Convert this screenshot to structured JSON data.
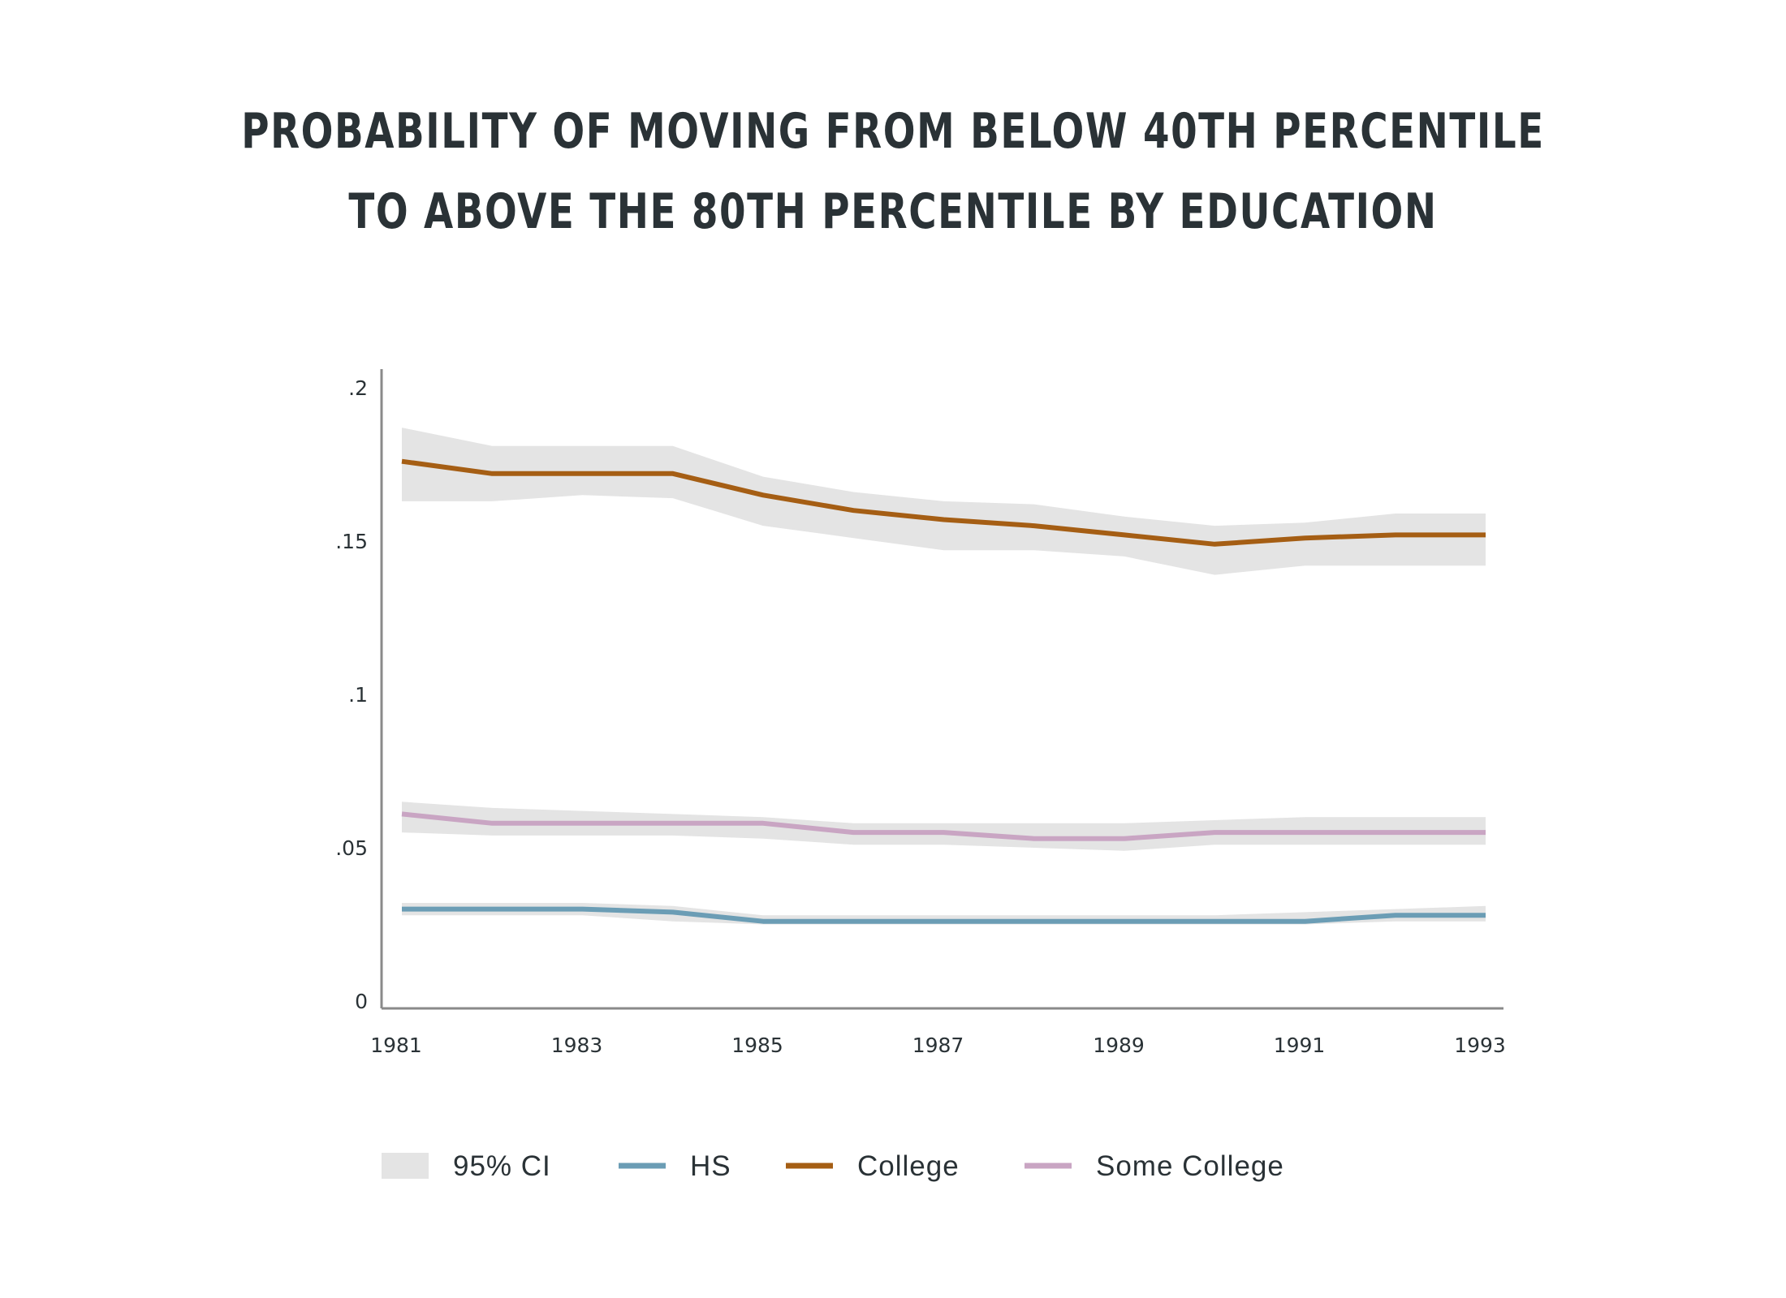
{
  "title": {
    "line1": "PROBABILITY OF MOVING FROM BELOW 40TH PERCENTILE",
    "line2": "TO ABOVE THE 80TH PERCENTILE BY EDUCATION"
  },
  "colors": {
    "ci": "#e4e4e4",
    "HS": "#6b9db5",
    "College": "#a55e14",
    "Some College": "#c9a5c3",
    "axis": "#8a8a8a",
    "text": "#2a3236"
  },
  "legend": [
    {
      "label": "95% CI",
      "type": "band",
      "color_key": "ci"
    },
    {
      "label": "HS",
      "type": "line",
      "color_key": "HS"
    },
    {
      "label": "College",
      "type": "line",
      "color_key": "College"
    },
    {
      "label": "Some College",
      "type": "line",
      "color_key": "Some College"
    }
  ],
  "chart_data": {
    "type": "line",
    "title": "PROBABILITY OF MOVING FROM BELOW 40TH PERCENTILE TO ABOVE THE 80TH PERCENTILE BY EDUCATION",
    "xlabel": "",
    "ylabel": "",
    "x": [
      1981,
      1982,
      1983,
      1984,
      1985,
      1986,
      1987,
      1988,
      1989,
      1990,
      1991,
      1992,
      1993
    ],
    "xlim": [
      1981,
      1993
    ],
    "ylim": [
      0,
      0.2
    ],
    "x_ticks": [
      1981,
      1983,
      1985,
      1987,
      1989,
      1991,
      1993
    ],
    "x_tick_labels": [
      "1981",
      "1983",
      "1985",
      "1987",
      "1989",
      "1991",
      "1993"
    ],
    "y_ticks": [
      0,
      0.05,
      0.1,
      0.15,
      0.2
    ],
    "y_tick_labels": [
      "0",
      ".05",
      ".1",
      ".15",
      ".2"
    ],
    "grid": false,
    "legend_position": "bottom",
    "series": [
      {
        "name": "HS",
        "values": [
          0.03,
          0.03,
          0.03,
          0.029,
          0.026,
          0.026,
          0.026,
          0.026,
          0.026,
          0.026,
          0.026,
          0.028,
          0.028
        ],
        "ci_lower": [
          0.028,
          0.028,
          0.028,
          0.026,
          0.025,
          0.025,
          0.025,
          0.025,
          0.025,
          0.025,
          0.025,
          0.026,
          0.026
        ],
        "ci_upper": [
          0.032,
          0.032,
          0.032,
          0.031,
          0.028,
          0.028,
          0.028,
          0.028,
          0.028,
          0.028,
          0.029,
          0.03,
          0.031
        ]
      },
      {
        "name": "College",
        "values": [
          0.176,
          0.172,
          0.172,
          0.172,
          0.165,
          0.16,
          0.157,
          0.155,
          0.152,
          0.149,
          0.151,
          0.152,
          0.152
        ],
        "ci_lower": [
          0.163,
          0.163,
          0.165,
          0.164,
          0.155,
          0.151,
          0.147,
          0.147,
          0.145,
          0.139,
          0.142,
          0.142,
          0.142
        ],
        "ci_upper": [
          0.187,
          0.181,
          0.181,
          0.181,
          0.171,
          0.166,
          0.163,
          0.162,
          0.158,
          0.155,
          0.156,
          0.159,
          0.159
        ]
      },
      {
        "name": "Some College",
        "values": [
          0.061,
          0.058,
          0.058,
          0.058,
          0.058,
          0.055,
          0.055,
          0.053,
          0.053,
          0.055,
          0.055,
          0.055,
          0.055
        ],
        "ci_lower": [
          0.055,
          0.054,
          0.054,
          0.054,
          0.053,
          0.051,
          0.051,
          0.05,
          0.049,
          0.051,
          0.051,
          0.051,
          0.051
        ],
        "ci_upper": [
          0.065,
          0.063,
          0.062,
          0.061,
          0.06,
          0.058,
          0.058,
          0.058,
          0.058,
          0.059,
          0.06,
          0.06,
          0.06
        ]
      }
    ]
  }
}
